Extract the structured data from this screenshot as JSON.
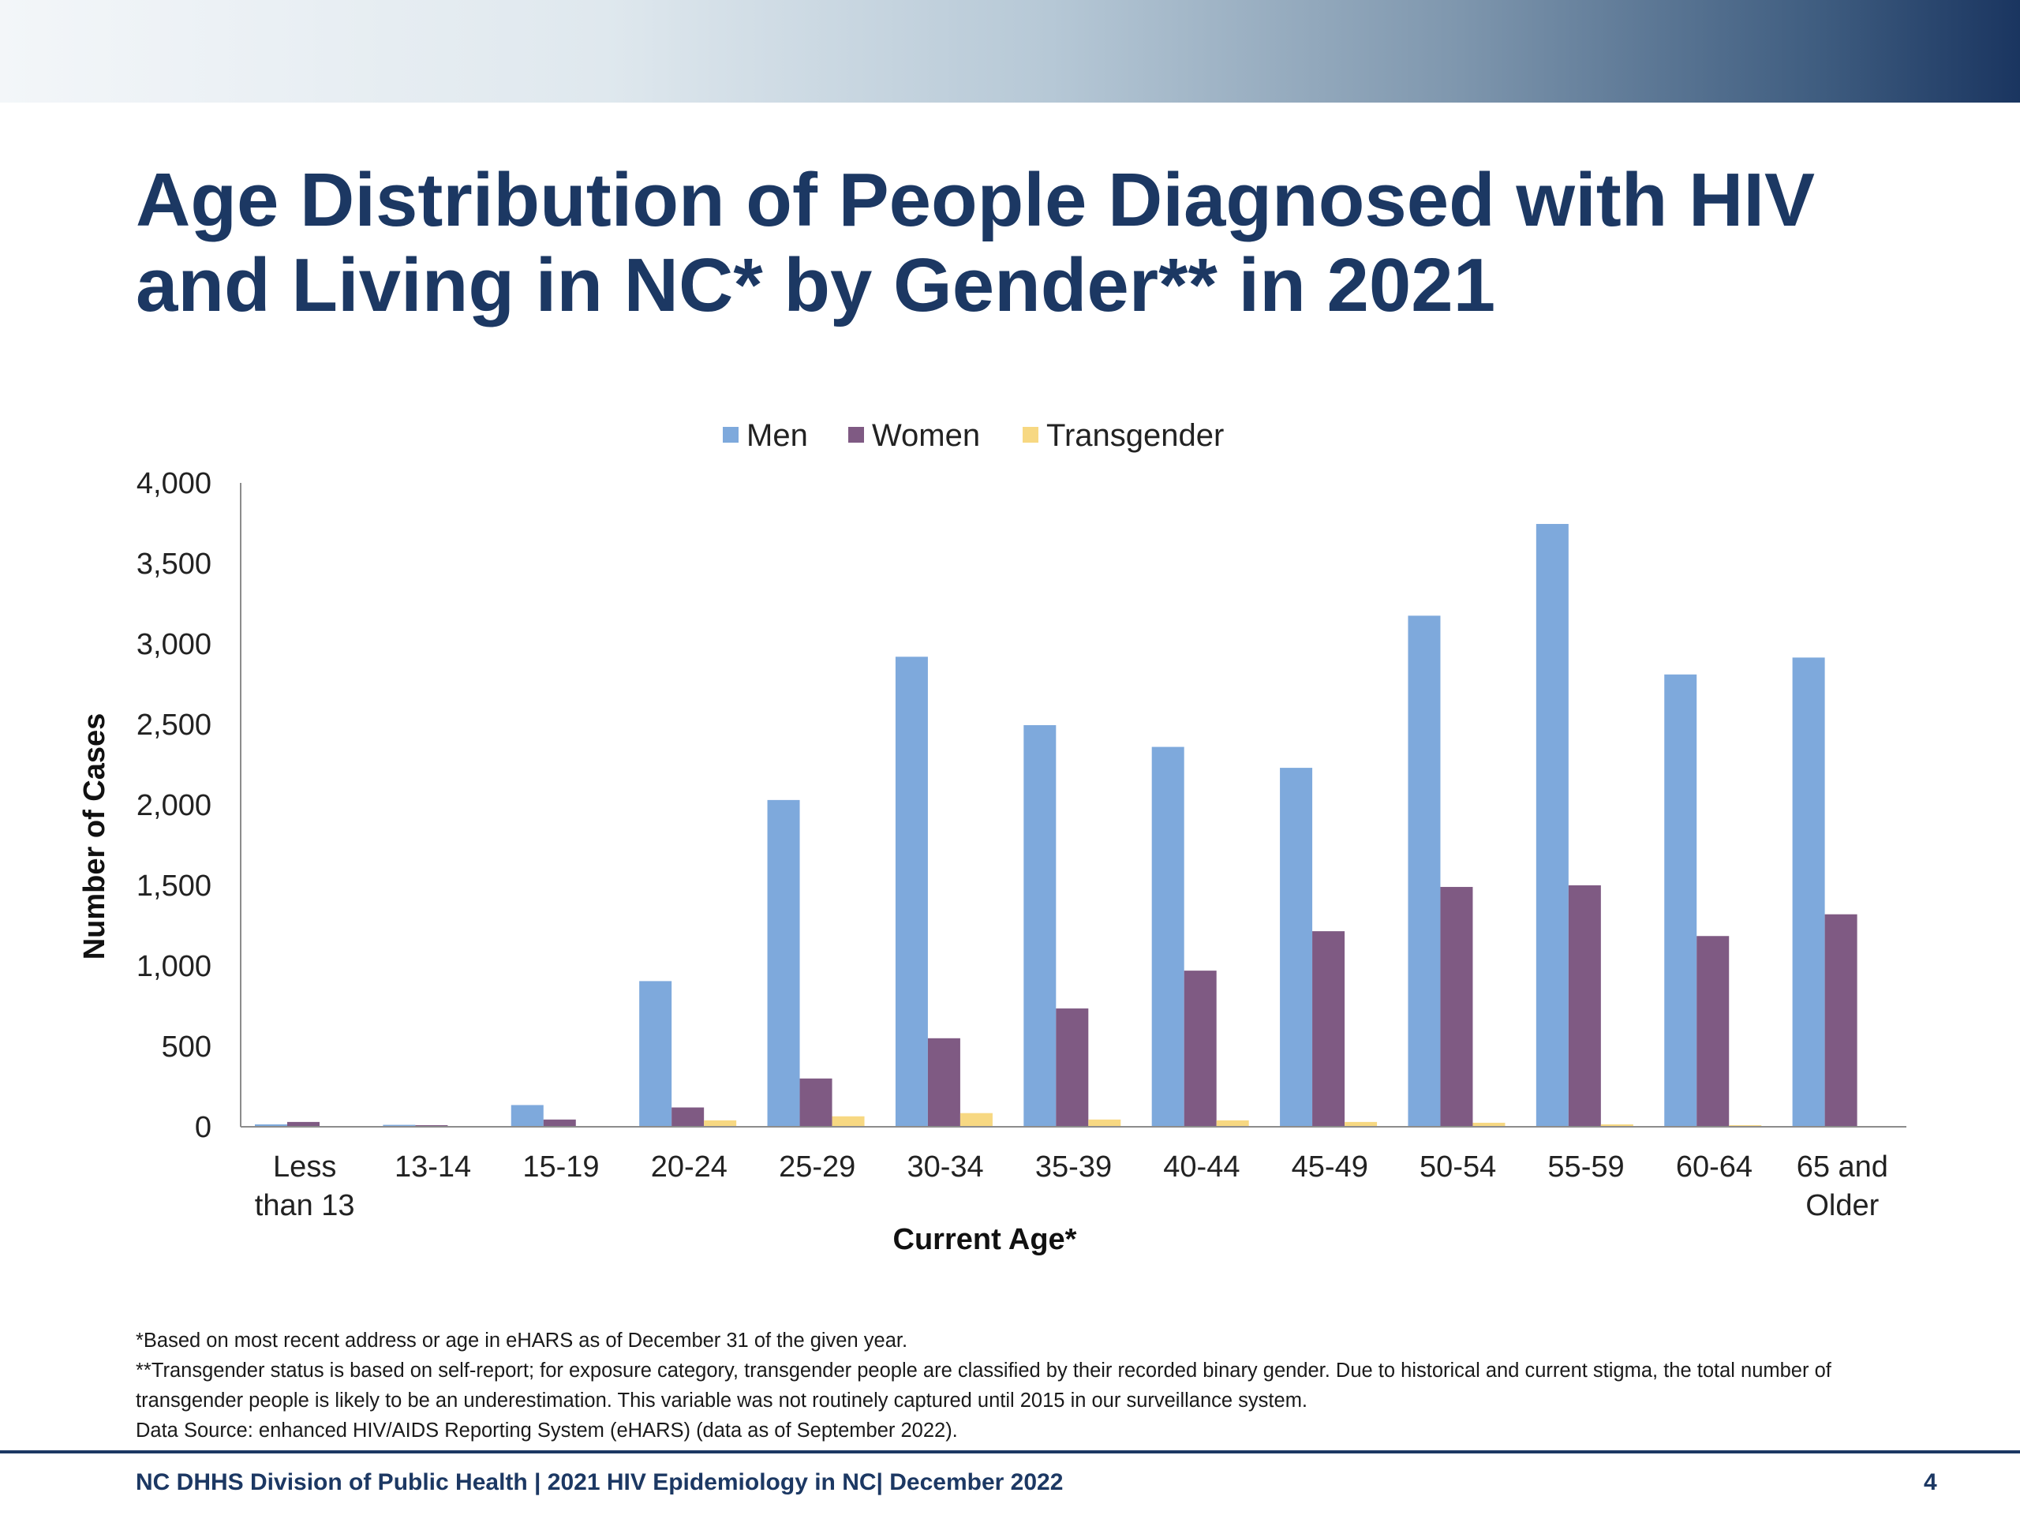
{
  "slide": {
    "title_lines": [
      "Age Distribution of People Diagnosed with HIV",
      "and Living in NC* by Gender** in 2021"
    ],
    "footnotes": [
      "*Based on most recent address or age in eHARS as of December 31 of the given year.",
      "**Transgender status is based on self-report; for exposure category, transgender people are classified by their recorded binary gender. Due to historical and current stigma, the total number of",
      "transgender people is likely to be an underestimation. This variable was not routinely captured until 2015 in our surveillance system.",
      "Data Source: enhanced HIV/AIDS Reporting System (eHARS) (data as of September 2022)."
    ],
    "footer_text": "NC DHHS Division of Public Health | 2021 HIV Epidemiology in NC| December 2022",
    "page_number": "4",
    "band_colors": [
      "#f3f6f9",
      "#1a3560"
    ]
  },
  "chart_data": {
    "type": "bar",
    "title": "",
    "xlabel": "Current Age*",
    "ylabel": "Number of Cases",
    "ylim": [
      0,
      4000
    ],
    "yticks": [
      0,
      500,
      1000,
      1500,
      2000,
      2500,
      3000,
      3500,
      4000
    ],
    "ytick_labels": [
      "0",
      "500",
      "1,000",
      "1,500",
      "2,000",
      "2,500",
      "3,000",
      "3,500",
      "4,000"
    ],
    "grid": false,
    "legend": "top-center",
    "categories": [
      [
        "Less",
        "than 13"
      ],
      [
        "13-14"
      ],
      [
        "15-19"
      ],
      [
        "20-24"
      ],
      [
        "25-29"
      ],
      [
        "30-34"
      ],
      [
        "35-39"
      ],
      [
        "40-44"
      ],
      [
        "45-49"
      ],
      [
        "50-54"
      ],
      [
        "55-59"
      ],
      [
        "60-64"
      ],
      [
        "65 and",
        "Older"
      ]
    ],
    "series": [
      {
        "name": "Men",
        "color": "#7ea9dc",
        "values": [
          15,
          12,
          135,
          905,
          2030,
          2920,
          2495,
          2360,
          2230,
          3175,
          3745,
          2810,
          2915
        ]
      },
      {
        "name": "Women",
        "color": "#7f5a83",
        "values": [
          30,
          10,
          45,
          120,
          300,
          550,
          735,
          970,
          1215,
          1490,
          1500,
          1185,
          1320
        ]
      },
      {
        "name": "Transgender",
        "color": "#f7d882",
        "values": [
          0,
          0,
          5,
          40,
          65,
          85,
          45,
          40,
          30,
          25,
          15,
          10,
          5
        ]
      }
    ]
  }
}
